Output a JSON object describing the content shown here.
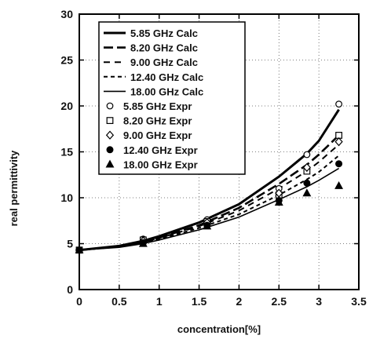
{
  "chart_data": {
    "type": "line",
    "xlabel": "concentration[%]",
    "ylabel": "real permittivity",
    "xlim": [
      0,
      3.5
    ],
    "ylim": [
      0,
      30
    ],
    "xticks": [
      "0",
      "0.5",
      "1",
      "1.5",
      "2",
      "2.5",
      "3",
      "3.5"
    ],
    "yticks": [
      "0",
      "5",
      "10",
      "15",
      "20",
      "25",
      "30"
    ],
    "grid": true,
    "legend_position": "top-left",
    "series": [
      {
        "name": "5.85 GHz Calc",
        "kind": "line",
        "dash": "solid",
        "width": 3.0,
        "x": [
          0,
          0.5,
          0.8,
          1.0,
          1.5,
          2.0,
          2.5,
          2.85,
          3.0,
          3.25
        ],
        "y": [
          4.3,
          4.75,
          5.3,
          5.8,
          7.3,
          9.3,
          12.3,
          14.8,
          16.2,
          19.6
        ]
      },
      {
        "name": "8.20 GHz Calc",
        "kind": "line",
        "dash": "12,5",
        "width": 2.6,
        "x": [
          0,
          0.5,
          0.8,
          1.0,
          1.5,
          2.0,
          2.5,
          2.85,
          3.0,
          3.25
        ],
        "y": [
          4.3,
          4.7,
          5.2,
          5.65,
          7.0,
          8.9,
          11.5,
          13.6,
          14.7,
          16.8
        ]
      },
      {
        "name": "9.00 GHz Calc",
        "kind": "line",
        "dash": "8,6",
        "width": 2.0,
        "x": [
          0,
          0.5,
          0.8,
          1.0,
          1.5,
          2.0,
          2.5,
          2.85,
          3.0,
          3.25
        ],
        "y": [
          4.3,
          4.7,
          5.15,
          5.6,
          6.9,
          8.6,
          11.0,
          12.9,
          13.9,
          15.8
        ]
      },
      {
        "name": "12.40 GHz Calc",
        "kind": "line",
        "dash": "5,4",
        "width": 2.0,
        "x": [
          0,
          0.5,
          0.8,
          1.0,
          1.5,
          2.0,
          2.5,
          2.85,
          3.0,
          3.25
        ],
        "y": [
          4.3,
          4.65,
          5.1,
          5.5,
          6.7,
          8.2,
          10.3,
          12.0,
          12.8,
          14.6
        ]
      },
      {
        "name": "18.00 GHz Calc",
        "kind": "line",
        "dash": "solid",
        "width": 1.6,
        "x": [
          0,
          0.5,
          0.8,
          1.0,
          1.5,
          2.0,
          2.5,
          2.85,
          3.0,
          3.25
        ],
        "y": [
          4.3,
          4.6,
          5.0,
          5.4,
          6.5,
          7.9,
          9.8,
          11.2,
          11.9,
          13.2
        ]
      },
      {
        "name": "5.85 GHz Expr",
        "kind": "marker",
        "marker": "open-circle",
        "x": [
          0,
          0.8,
          1.6,
          2.5,
          2.85,
          3.25
        ],
        "y": [
          4.3,
          5.5,
          7.6,
          11.0,
          14.7,
          20.2
        ]
      },
      {
        "name": "8.20 GHz Expr",
        "kind": "marker",
        "marker": "open-square",
        "x": [
          0,
          0.8,
          1.6,
          2.5,
          2.85,
          3.25
        ],
        "y": [
          4.3,
          5.4,
          7.4,
          10.3,
          12.9,
          16.8
        ]
      },
      {
        "name": "9.00 GHz Expr",
        "kind": "marker",
        "marker": "open-diamond",
        "x": [
          0,
          0.8,
          1.6,
          2.5,
          2.85,
          3.25
        ],
        "y": [
          4.3,
          5.3,
          7.3,
          10.5,
          13.3,
          16.1
        ]
      },
      {
        "name": "12.40 GHz Expr",
        "kind": "marker",
        "marker": "filled-circle",
        "x": [
          0,
          0.8,
          1.6,
          2.5,
          2.85,
          3.25
        ],
        "y": [
          4.3,
          5.1,
          7.0,
          9.7,
          11.6,
          13.7
        ]
      },
      {
        "name": "18.00 GHz Expr",
        "kind": "marker",
        "marker": "filled-triangle",
        "x": [
          0,
          0.8,
          1.6,
          2.5,
          2.85,
          3.25
        ],
        "y": [
          4.3,
          5.0,
          6.9,
          9.5,
          10.5,
          11.3
        ]
      }
    ]
  }
}
